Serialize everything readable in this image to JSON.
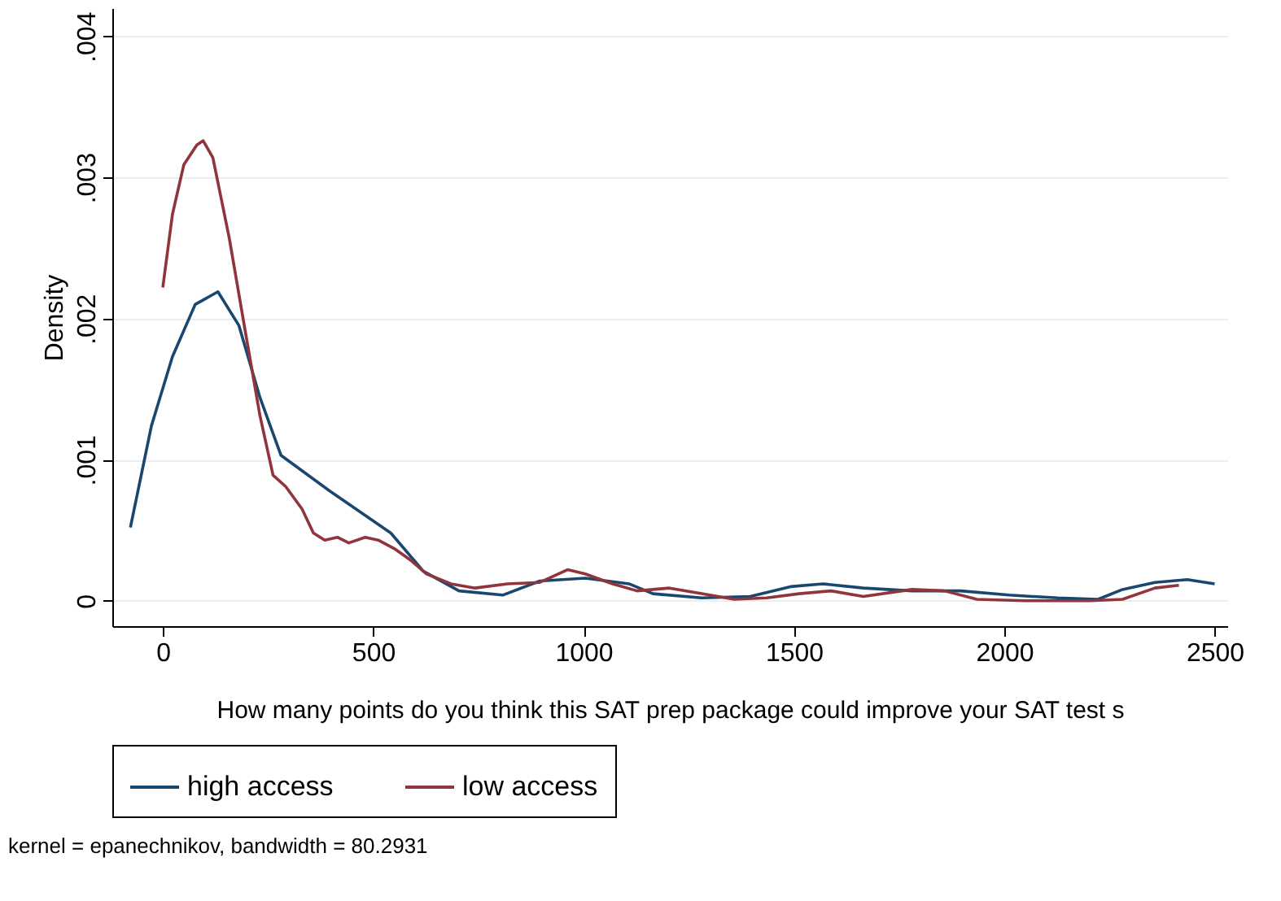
{
  "chart_data": {
    "type": "line",
    "xlabel": "How many points do you think this SAT prep package could improve your SAT test s",
    "ylabel": "Density",
    "xlim": [
      -120,
      2530
    ],
    "xticks": [
      0,
      500,
      1000,
      1500,
      2000,
      2500
    ],
    "ylim": [
      -0.00018,
      0.0042
    ],
    "yticks": [
      {
        "value": 0,
        "label": "0"
      },
      {
        "value": 0.001,
        "label": ".001"
      },
      {
        "value": 0.002,
        "label": ".002"
      },
      {
        "value": 0.003,
        "label": ".003"
      },
      {
        "value": 0.004,
        "label": ".004"
      }
    ],
    "grid": "y",
    "legend": "bottom",
    "line_style": "solid",
    "marker": "none",
    "annotations": [
      "kernel = epanechnikov, bandwidth = 80.2931"
    ],
    "series": [
      {
        "name": "high access",
        "color": "#1a476f",
        "x": [
          -77,
          -27,
          23,
          77,
          131,
          181,
          231,
          281,
          396,
          542,
          619,
          704,
          808,
          896,
          1004,
          1108,
          1165,
          1281,
          1396,
          1492,
          1569,
          1665,
          1781,
          1896,
          2012,
          2127,
          2223,
          2281,
          2358,
          2435,
          2500
        ],
        "values": [
          0.00052,
          0.00124,
          0.00173,
          0.0021,
          0.00219,
          0.00195,
          0.00144,
          0.00103,
          0.00078,
          0.00048,
          0.00021,
          7e-05,
          4e-05,
          0.00014,
          0.00016,
          0.00012,
          5e-05,
          2e-05,
          3e-05,
          0.0001,
          0.00012,
          9e-05,
          7e-05,
          7e-05,
          4e-05,
          2e-05,
          1e-05,
          8e-05,
          0.00013,
          0.00015,
          0.00012
        ]
      },
      {
        "name": "low access",
        "color": "#90353b",
        "x": [
          0,
          23,
          50,
          81,
          96,
          119,
          158,
          196,
          231,
          262,
          292,
          331,
          358,
          385,
          415,
          442,
          481,
          512,
          550,
          588,
          627,
          685,
          742,
          819,
          896,
          962,
          1004,
          1069,
          1127,
          1204,
          1281,
          1358,
          1435,
          1512,
          1588,
          1665,
          1781,
          1858,
          1935,
          2050,
          2204,
          2281,
          2358,
          2415
        ],
        "values": [
          0.00222,
          0.00274,
          0.00309,
          0.00323,
          0.00326,
          0.00314,
          0.00257,
          0.00191,
          0.00131,
          0.00089,
          0.00081,
          0.00065,
          0.00048,
          0.00043,
          0.00045,
          0.00041,
          0.00045,
          0.00043,
          0.00037,
          0.00029,
          0.00019,
          0.00012,
          9e-05,
          0.00012,
          0.00013,
          0.00022,
          0.00019,
          0.00012,
          7e-05,
          9e-05,
          5e-05,
          1e-05,
          2e-05,
          5e-05,
          7e-05,
          3e-05,
          8e-05,
          7e-05,
          1e-05,
          0,
          0,
          1e-05,
          9e-05,
          0.00011
        ]
      }
    ]
  }
}
